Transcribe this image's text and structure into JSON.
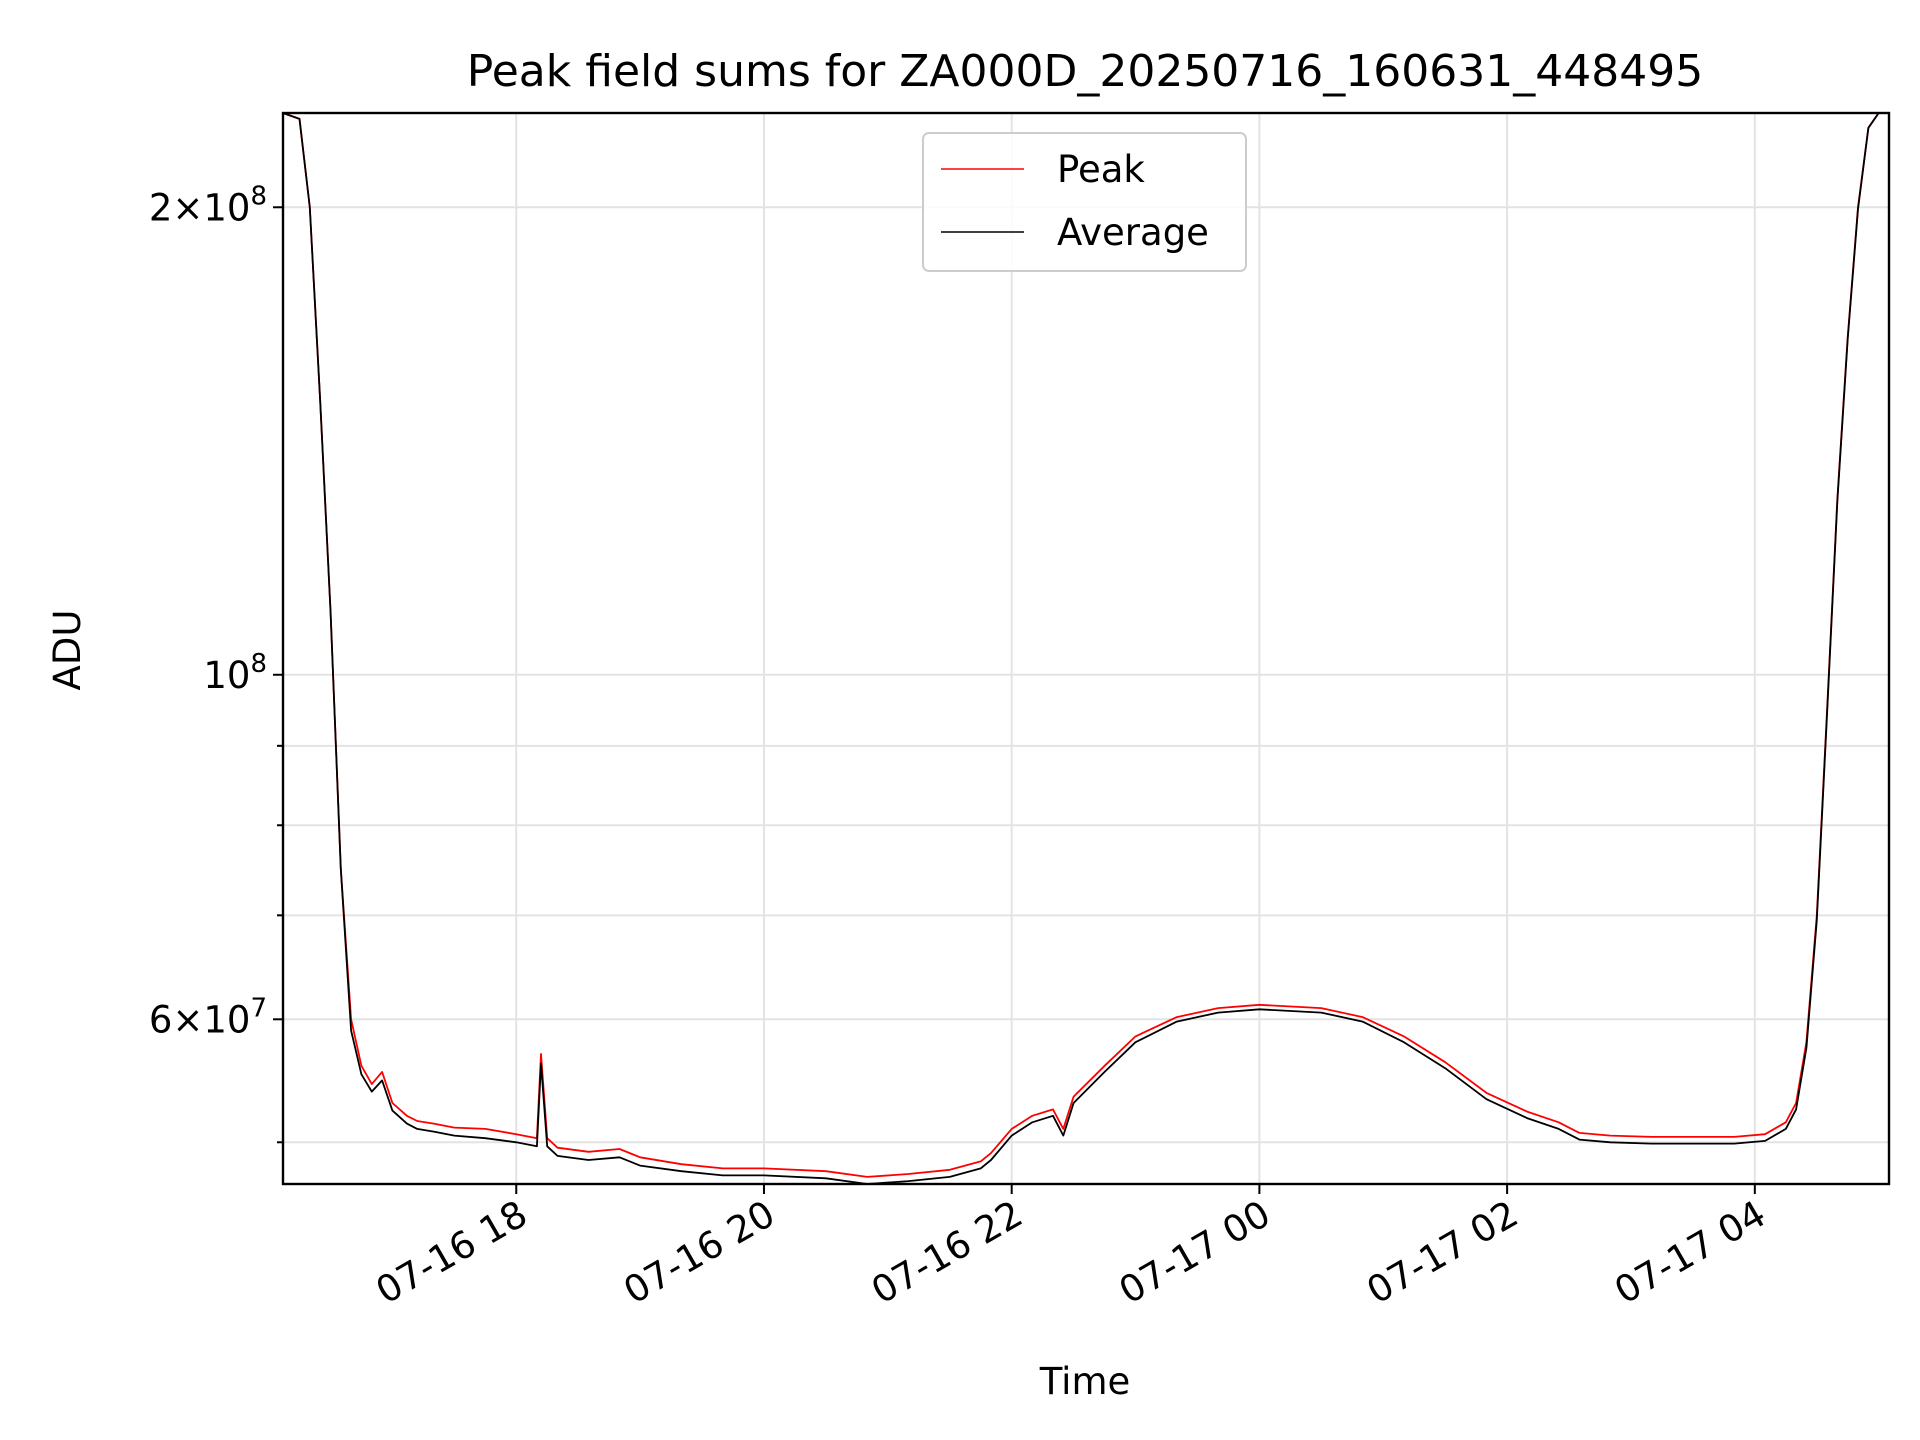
{
  "chart_data": {
    "type": "line",
    "title": "Peak field sums for ZA000D_20250716_160631_448495",
    "xlabel": "Time",
    "ylabel": "ADU",
    "xlim": [
      "2025-07-16 16:07",
      "2025-07-17 05:05"
    ],
    "ylim": [
      47000000,
      230000000
    ],
    "yscale": "log",
    "grid": true,
    "legend_position": "upper-center",
    "x_ticks": [
      {
        "value": "2025-07-16 18:00",
        "label": "07-16 18"
      },
      {
        "value": "2025-07-16 20:00",
        "label": "07-16 20"
      },
      {
        "value": "2025-07-16 22:00",
        "label": "07-16 22"
      },
      {
        "value": "2025-07-17 00:00",
        "label": "07-17 00"
      },
      {
        "value": "2025-07-17 02:00",
        "label": "07-17 02"
      },
      {
        "value": "2025-07-17 04:00",
        "label": "07-17 04"
      }
    ],
    "y_major_ticks": [
      {
        "value": 60000000,
        "mantissa": "6",
        "exp": "7"
      },
      {
        "value": 100000000,
        "mantissa": "",
        "exp": "8"
      },
      {
        "value": 200000000,
        "mantissa": "2",
        "exp": "8"
      }
    ],
    "y_minor_ticks": [
      50000000,
      70000000,
      80000000,
      90000000
    ],
    "series": [
      {
        "name": "Peak",
        "color": "#ff0000",
        "x": [
          "2025-07-16 16:07",
          "2025-07-16 16:15",
          "2025-07-16 16:20",
          "2025-07-16 16:25",
          "2025-07-16 16:30",
          "2025-07-16 16:35",
          "2025-07-16 16:40",
          "2025-07-16 16:45",
          "2025-07-16 16:50",
          "2025-07-16 16:55",
          "2025-07-16 17:00",
          "2025-07-16 17:07",
          "2025-07-16 17:12",
          "2025-07-16 17:20",
          "2025-07-16 17:30",
          "2025-07-16 17:45",
          "2025-07-16 18:00",
          "2025-07-16 18:10",
          "2025-07-16 18:12",
          "2025-07-16 18:15",
          "2025-07-16 18:20",
          "2025-07-16 18:35",
          "2025-07-16 18:50",
          "2025-07-16 19:00",
          "2025-07-16 19:20",
          "2025-07-16 19:40",
          "2025-07-16 20:00",
          "2025-07-16 20:30",
          "2025-07-16 20:50",
          "2025-07-16 21:10",
          "2025-07-16 21:30",
          "2025-07-16 21:45",
          "2025-07-16 21:50",
          "2025-07-16 22:00",
          "2025-07-16 22:10",
          "2025-07-16 22:20",
          "2025-07-16 22:25",
          "2025-07-16 22:30",
          "2025-07-16 22:45",
          "2025-07-16 23:00",
          "2025-07-16 23:20",
          "2025-07-16 23:40",
          "2025-07-17 00:00",
          "2025-07-17 00:30",
          "2025-07-17 00:50",
          "2025-07-17 01:10",
          "2025-07-17 01:30",
          "2025-07-17 01:50",
          "2025-07-17 02:10",
          "2025-07-17 02:25",
          "2025-07-17 02:35",
          "2025-07-17 02:50",
          "2025-07-17 03:10",
          "2025-07-17 03:30",
          "2025-07-17 03:50",
          "2025-07-17 04:05",
          "2025-07-17 04:15",
          "2025-07-17 04:20",
          "2025-07-17 04:25",
          "2025-07-17 04:30",
          "2025-07-17 04:35",
          "2025-07-17 04:40",
          "2025-07-17 04:45",
          "2025-07-17 04:50",
          "2025-07-17 04:55",
          "2025-07-17 05:00",
          "2025-07-17 05:05"
        ],
        "y": [
          230000000,
          228000000,
          200000000,
          150000000,
          110000000,
          75000000,
          60000000,
          56000000,
          54500000,
          55500000,
          53000000,
          52000000,
          51600000,
          51400000,
          51100000,
          51000000,
          50600000,
          50300000,
          57000000,
          50300000,
          49600000,
          49300000,
          49500000,
          48900000,
          48400000,
          48100000,
          48100000,
          47900000,
          47500000,
          47700000,
          48000000,
          48600000,
          49200000,
          51000000,
          52000000,
          52500000,
          51000000,
          53500000,
          56000000,
          58500000,
          60200000,
          61000000,
          61300000,
          61000000,
          60200000,
          58500000,
          56300000,
          53800000,
          52300000,
          51500000,
          50700000,
          50500000,
          50400000,
          50400000,
          50400000,
          50600000,
          51500000,
          53000000,
          58000000,
          70000000,
          95000000,
          130000000,
          165000000,
          200000000,
          225000000,
          230000000,
          230000000
        ]
      },
      {
        "name": "Average",
        "color": "#000000",
        "x": [
          "2025-07-16 16:07",
          "2025-07-16 16:15",
          "2025-07-16 16:20",
          "2025-07-16 16:25",
          "2025-07-16 16:30",
          "2025-07-16 16:35",
          "2025-07-16 16:40",
          "2025-07-16 16:45",
          "2025-07-16 16:50",
          "2025-07-16 16:55",
          "2025-07-16 17:00",
          "2025-07-16 17:07",
          "2025-07-16 17:12",
          "2025-07-16 17:20",
          "2025-07-16 17:30",
          "2025-07-16 17:45",
          "2025-07-16 18:00",
          "2025-07-16 18:10",
          "2025-07-16 18:12",
          "2025-07-16 18:15",
          "2025-07-16 18:20",
          "2025-07-16 18:35",
          "2025-07-16 18:50",
          "2025-07-16 19:00",
          "2025-07-16 19:20",
          "2025-07-16 19:40",
          "2025-07-16 20:00",
          "2025-07-16 20:30",
          "2025-07-16 20:50",
          "2025-07-16 21:10",
          "2025-07-16 21:30",
          "2025-07-16 21:45",
          "2025-07-16 21:50",
          "2025-07-16 22:00",
          "2025-07-16 22:10",
          "2025-07-16 22:20",
          "2025-07-16 22:25",
          "2025-07-16 22:30",
          "2025-07-16 22:45",
          "2025-07-16 23:00",
          "2025-07-16 23:20",
          "2025-07-16 23:40",
          "2025-07-17 00:00",
          "2025-07-17 00:30",
          "2025-07-17 00:50",
          "2025-07-17 01:10",
          "2025-07-17 01:30",
          "2025-07-17 01:50",
          "2025-07-17 02:10",
          "2025-07-17 02:25",
          "2025-07-17 02:35",
          "2025-07-17 02:50",
          "2025-07-17 03:10",
          "2025-07-17 03:30",
          "2025-07-17 03:50",
          "2025-07-17 04:05",
          "2025-07-17 04:15",
          "2025-07-17 04:20",
          "2025-07-17 04:25",
          "2025-07-17 04:30",
          "2025-07-17 04:35",
          "2025-07-17 04:40",
          "2025-07-17 04:45",
          "2025-07-17 04:50",
          "2025-07-17 04:55",
          "2025-07-17 05:00",
          "2025-07-17 05:05"
        ],
        "y": [
          230000000,
          228000000,
          200000000,
          150000000,
          110000000,
          75000000,
          59000000,
          55300000,
          53900000,
          54800000,
          52400000,
          51400000,
          51000000,
          50800000,
          50500000,
          50300000,
          50000000,
          49700000,
          56200000,
          49700000,
          49000000,
          48700000,
          48900000,
          48300000,
          47900000,
          47600000,
          47600000,
          47400000,
          47000000,
          47200000,
          47500000,
          48100000,
          48700000,
          50500000,
          51500000,
          52000000,
          50500000,
          53000000,
          55500000,
          58000000,
          59800000,
          60600000,
          60900000,
          60600000,
          59800000,
          58000000,
          55800000,
          53300000,
          51800000,
          51000000,
          50200000,
          50000000,
          49900000,
          49900000,
          49900000,
          50100000,
          51000000,
          52500000,
          57500000,
          69500000,
          94500000,
          129500000,
          164500000,
          199500000,
          225000000,
          230000000,
          230000000
        ]
      }
    ]
  }
}
